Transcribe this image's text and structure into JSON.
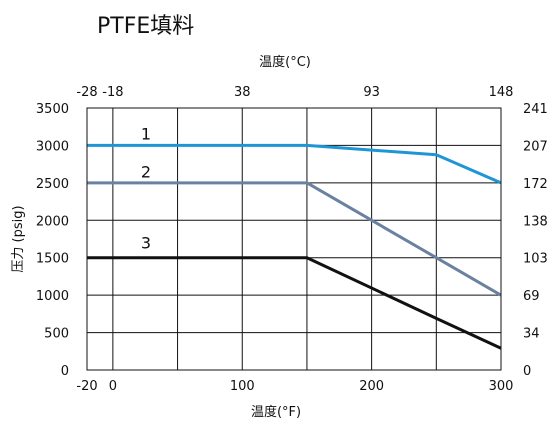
{
  "chart_data": {
    "type": "line",
    "title": "PTFE填料",
    "xlabel": "温度(°F)",
    "x2label": "温度(°C)",
    "ylabel": "压力 (psig)",
    "xlim": [
      -20,
      300
    ],
    "ylim": [
      0,
      3500
    ],
    "grid": true,
    "x_ticks": [
      -20,
      0,
      100,
      200,
      300
    ],
    "x_gridlines": [
      -20,
      0,
      50,
      100,
      150,
      200,
      250,
      300
    ],
    "y_ticks": [
      0,
      500,
      1000,
      1500,
      2000,
      2500,
      3000,
      3500
    ],
    "top_ticks": [
      {
        "label": "-28",
        "x_f": -20
      },
      {
        "label": "-18",
        "x_f": 0
      },
      {
        "label": "38",
        "x_f": 100
      },
      {
        "label": "93",
        "x_f": 200
      },
      {
        "label": "148",
        "x_f": 300
      }
    ],
    "right_ticks": [
      {
        "label": "0",
        "y": 0
      },
      {
        "label": "34",
        "y": 500
      },
      {
        "label": "69",
        "y": 1000
      },
      {
        "label": "103",
        "y": 1500
      },
      {
        "label": "138",
        "y": 2000
      },
      {
        "label": "172",
        "y": 2500
      },
      {
        "label": "207",
        "y": 3000
      },
      {
        "label": "241",
        "y": 3500
      }
    ],
    "series": [
      {
        "label": "1",
        "color": "#1e96d6",
        "label_color": "#2a8fd0",
        "label_at": [
          10,
          3160
        ],
        "x": [
          -20,
          150,
          250,
          300
        ],
        "y": [
          3000,
          3000,
          2875,
          2500
        ]
      },
      {
        "label": "2",
        "color": "#6a82a0",
        "label_color": "#5d7ea6",
        "label_at": [
          10,
          2650
        ],
        "x": [
          -20,
          150,
          250,
          300
        ],
        "y": [
          2500,
          2500,
          1500,
          1000
        ]
      },
      {
        "label": "3",
        "color": "#111111",
        "label_color": "#111111",
        "label_at": [
          10,
          1700
        ],
        "x": [
          -20,
          150,
          250,
          300
        ],
        "y": [
          1500,
          1500,
          690,
          290
        ]
      }
    ]
  }
}
